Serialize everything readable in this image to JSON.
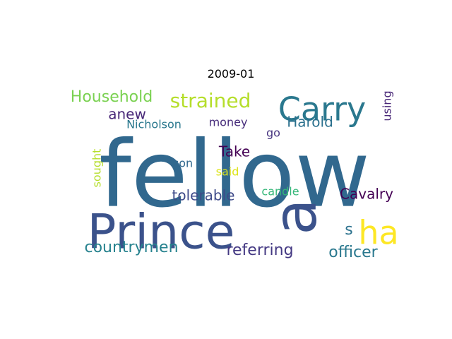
{
  "figure": {
    "title": "2009-01"
  },
  "words": [
    {
      "text": "fellow",
      "color": "#31688e",
      "rotated": false
    },
    {
      "text": "Prince",
      "color": "#3b528b",
      "rotated": false
    },
    {
      "text": "a",
      "color": "#3b528b",
      "rotated": true
    },
    {
      "text": "Carry",
      "color": "#2a788e",
      "rotated": false
    },
    {
      "text": "ha",
      "color": "#fde725",
      "rotated": false
    },
    {
      "text": "strained",
      "color": "#b5de2b",
      "rotated": false
    },
    {
      "text": "Household",
      "color": "#7ad151",
      "rotated": false
    },
    {
      "text": "countrymen",
      "color": "#26828e",
      "rotated": false
    },
    {
      "text": "officer",
      "color": "#2a788e",
      "rotated": false
    },
    {
      "text": "referring",
      "color": "#443983",
      "rotated": false
    },
    {
      "text": "tolerable",
      "color": "#3e4a89",
      "rotated": false
    },
    {
      "text": "Cavalry",
      "color": "#440154",
      "rotated": false
    },
    {
      "text": "Harold",
      "color": "#2c718e",
      "rotated": false
    },
    {
      "text": "anew",
      "color": "#482878",
      "rotated": false
    },
    {
      "text": "Take",
      "color": "#440154",
      "rotated": false
    },
    {
      "text": "Nicholson",
      "color": "#2a788e",
      "rotated": false
    },
    {
      "text": "money",
      "color": "#472d7b",
      "rotated": false
    },
    {
      "text": "using",
      "color": "#482677",
      "rotated": true
    },
    {
      "text": "go",
      "color": "#46337f",
      "rotated": false
    },
    {
      "text": "sought",
      "color": "#b5de2b",
      "rotated": true
    },
    {
      "text": "son",
      "color": "#31688e",
      "rotated": false
    },
    {
      "text": "said",
      "color": "#dde318",
      "rotated": false
    },
    {
      "text": "candle",
      "color": "#35b779",
      "rotated": false
    },
    {
      "text": "s",
      "color": "#2c728e",
      "rotated": false
    }
  ]
}
